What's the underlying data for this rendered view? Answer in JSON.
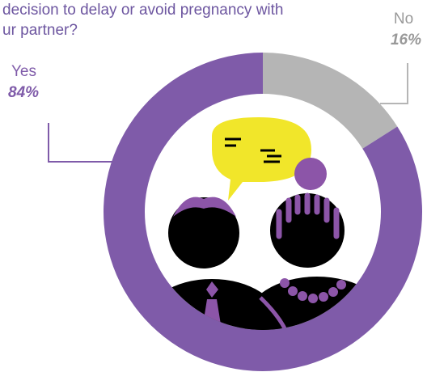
{
  "chart_data": {
    "type": "pie",
    "title_lines": [
      "decision to delay or avoid pregnancy with",
      "ur partner?"
    ],
    "categories": [
      "No",
      "Yes"
    ],
    "values": [
      16,
      84
    ],
    "value_labels": [
      "16%",
      "84%"
    ],
    "colors": [
      "#b5b5b5",
      "#7f5ba9"
    ]
  }
}
